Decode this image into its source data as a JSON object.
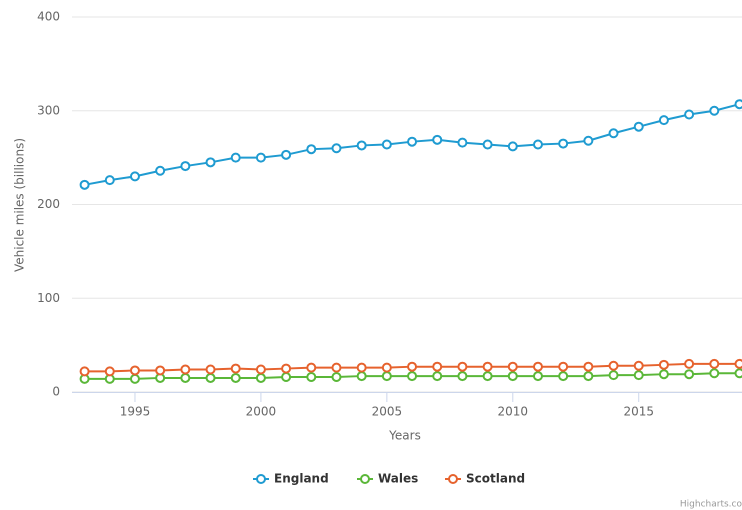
{
  "chart_data": {
    "type": "line",
    "x": [
      1993,
      1994,
      1995,
      1996,
      1997,
      1998,
      1999,
      2000,
      2001,
      2002,
      2003,
      2004,
      2005,
      2006,
      2007,
      2008,
      2009,
      2010,
      2011,
      2012,
      2013,
      2014,
      2015,
      2016,
      2017,
      2018,
      2019
    ],
    "series": [
      {
        "name": "England",
        "color": "#1f9bd1",
        "values": [
          221,
          226,
          230,
          236,
          241,
          245,
          250,
          250,
          253,
          259,
          260,
          263,
          264,
          267,
          269,
          266,
          264,
          262,
          264,
          265,
          268,
          276,
          283,
          290,
          296,
          300,
          307
        ]
      },
      {
        "name": "Wales",
        "color": "#5ab738",
        "values": [
          14,
          14,
          14,
          15,
          15,
          15,
          15,
          15,
          16,
          16,
          16,
          17,
          17,
          17,
          17,
          17,
          17,
          17,
          17,
          17,
          17,
          18,
          18,
          19,
          19,
          20,
          20
        ]
      },
      {
        "name": "Scotland",
        "color": "#e6622d",
        "values": [
          22,
          22,
          23,
          23,
          24,
          24,
          25,
          24,
          25,
          26,
          26,
          26,
          26,
          27,
          27,
          27,
          27,
          27,
          27,
          27,
          27,
          28,
          28,
          29,
          30,
          30,
          30
        ]
      }
    ],
    "xlabel": "Years",
    "ylabel": "Vehicle miles (billions)",
    "xlim": [
      1992.5,
      2019.1
    ],
    "xticks": [
      1995,
      2000,
      2005,
      2010,
      2015
    ],
    "ylim": [
      0,
      400
    ],
    "yticks": [
      0,
      100,
      200,
      300,
      400
    ],
    "grid": true,
    "credit": "Highcharts.co"
  }
}
